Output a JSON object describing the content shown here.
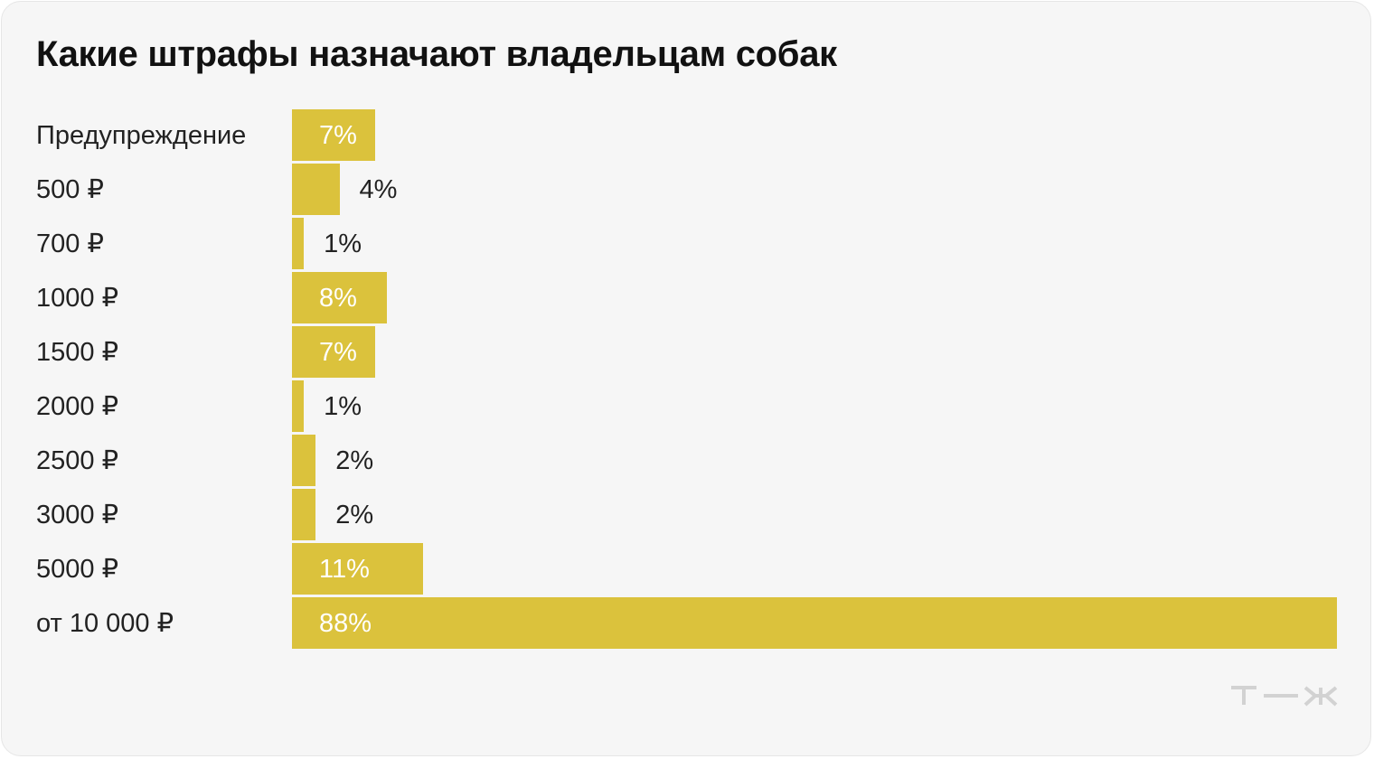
{
  "title": "Какие штрафы назначают владельцам собак",
  "colors": {
    "bar": "#dbc23c",
    "background": "#f6f6f6",
    "label_inside": "#ffffff",
    "label_outside": "#222222",
    "logo": "#d2d2d2"
  },
  "logo": {
    "text": "т—ж"
  },
  "chart_data": {
    "type": "bar",
    "orientation": "horizontal",
    "categories": [
      "Предупреждение",
      "500 ₽",
      "700 ₽",
      "1000 ₽",
      "1500 ₽",
      "2000 ₽",
      "2500 ₽",
      "3000 ₽",
      "5000 ₽",
      "от 10 000 ₽"
    ],
    "values": [
      7,
      4,
      1,
      8,
      7,
      1,
      2,
      2,
      11,
      88
    ],
    "value_labels": [
      "7%",
      "4%",
      "1%",
      "8%",
      "7%",
      "1%",
      "2%",
      "2%",
      "11%",
      "88%"
    ],
    "xlim": [
      0,
      88
    ],
    "grid": false,
    "title": "Какие штрафы назначают владельцам собак"
  }
}
